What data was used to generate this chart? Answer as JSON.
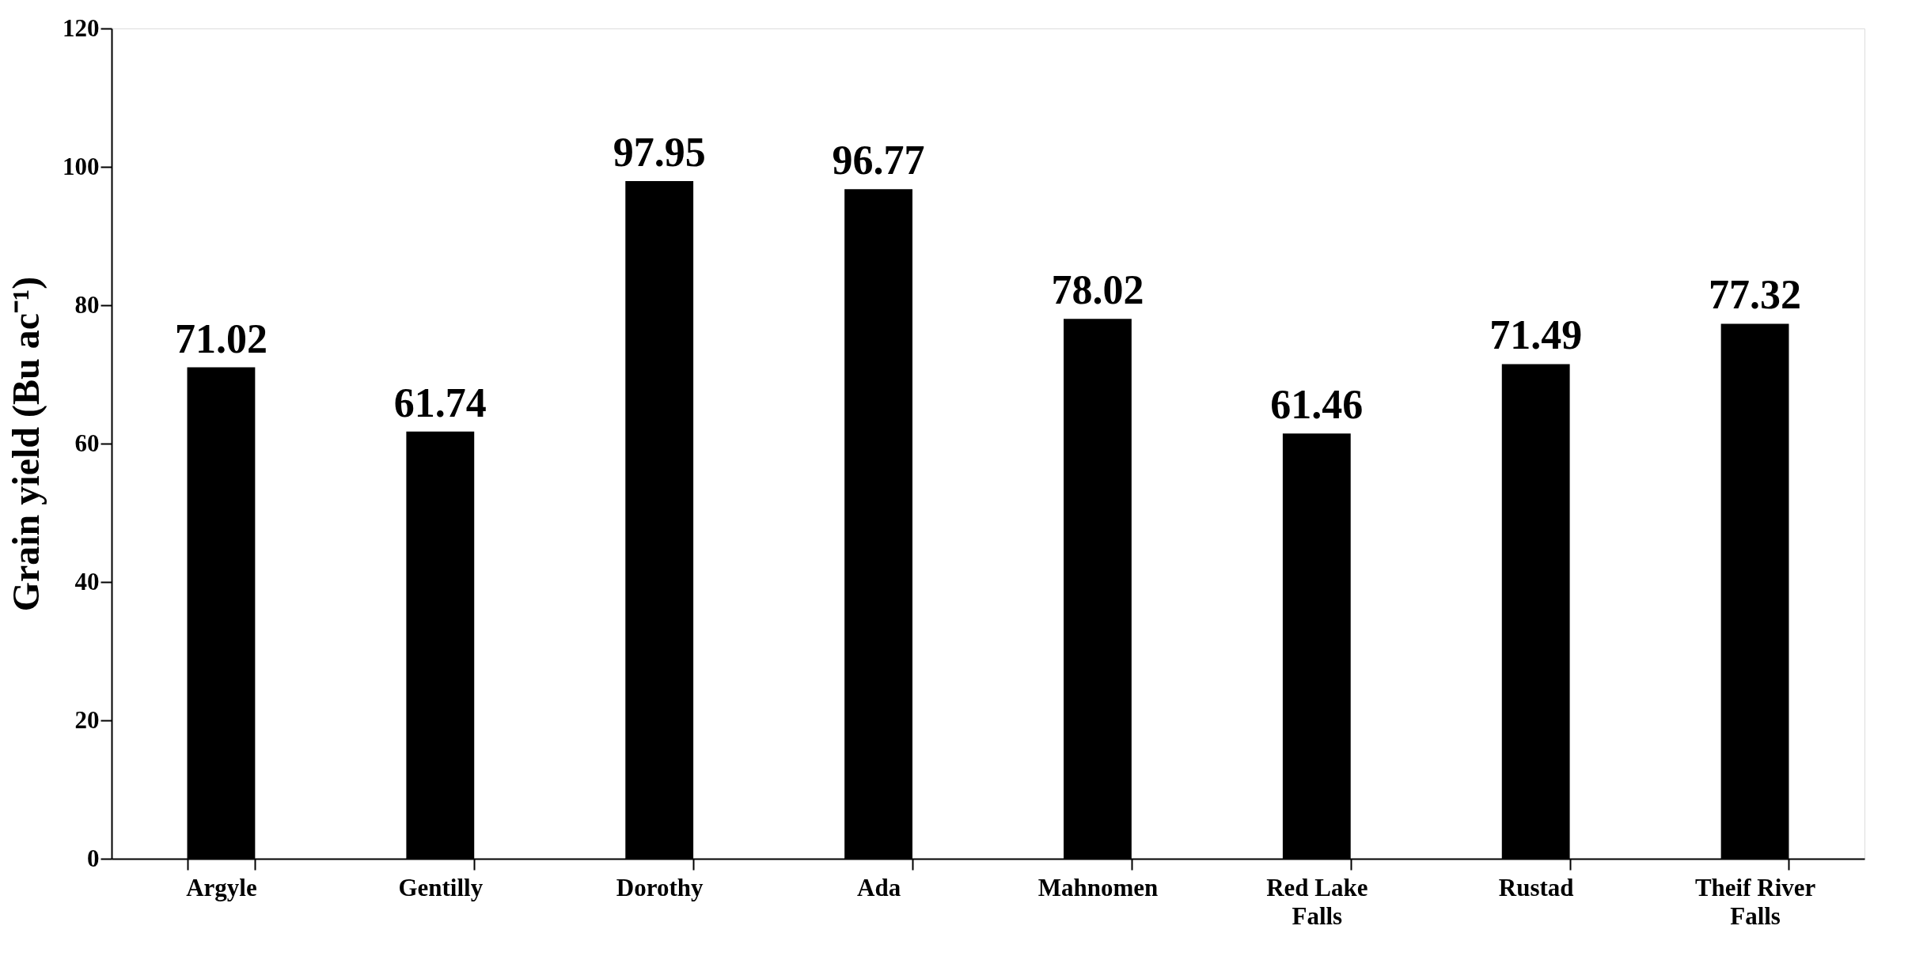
{
  "chart_data": {
    "type": "bar",
    "ylabel": "Grain yield (Bu ac⁻¹)",
    "categories": [
      "Argyle",
      "Gentilly",
      "Dorothy",
      "Ada",
      "Mahnomen",
      "Red Lake Falls",
      "Rustad",
      "Theif River Falls"
    ],
    "values": [
      71.02,
      61.74,
      97.95,
      96.77,
      78.02,
      61.46,
      71.49,
      77.32
    ],
    "color": "#000000",
    "ylim": [
      0,
      120
    ],
    "yticks": [
      0,
      20,
      40,
      60,
      80,
      100,
      120
    ],
    "grid": false,
    "data_labels": true
  }
}
